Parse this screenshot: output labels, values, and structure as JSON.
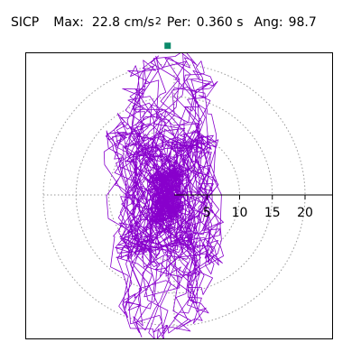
{
  "header": {
    "channel": "SICP",
    "max_label": "Max:",
    "max_value": "22.8 cm/s",
    "max_exponent": "2",
    "per_label": "Per:",
    "per_value": "0.360 s",
    "ang_label": "Ang:",
    "ang_value": "98.7"
  },
  "colors": {
    "trace": "#8800cc",
    "marker": "#0b8a6a",
    "grid": "#999999",
    "axis": "#000000",
    "frame": "#000000"
  },
  "chart_data": {
    "type": "scatter",
    "subtype": "polar orbit (particle motion)",
    "title": "",
    "radial_ticks": [
      "5",
      "10",
      "15",
      "20"
    ],
    "radial_tick_values": [
      5,
      10,
      15,
      20
    ],
    "grid": "dotted concentric circles",
    "max_amplitude": 22.8,
    "period_s": 0.36,
    "angle_deg": 98.7,
    "max_point": {
      "x": -1.0,
      "y": 22.8
    }
  }
}
